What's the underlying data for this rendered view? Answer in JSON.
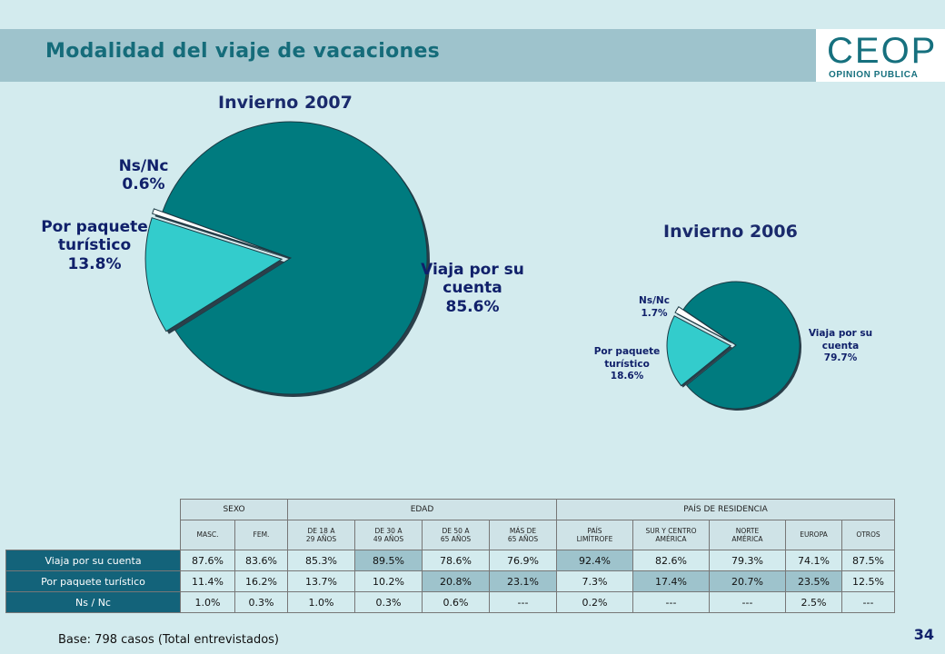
{
  "header": {
    "title": "Modalidad del viaje de vacaciones"
  },
  "logo": {
    "main": "CEOP",
    "sub": "OPINION PUBLICA"
  },
  "chart_data": [
    {
      "type": "pie",
      "title": "Invierno 2007",
      "slices": [
        {
          "name": "Viaja por su cuenta",
          "value": 85.6,
          "value_label": "85.6%",
          "color": "#007b7f"
        },
        {
          "name": "Ns/Nc",
          "value": 0.6,
          "value_label": "0.6%",
          "color": "#ffffff"
        },
        {
          "name": "Por paquete turístico",
          "value": 13.8,
          "value_label": "13.8%",
          "color": "#33cccc"
        }
      ]
    },
    {
      "type": "pie",
      "title": "Invierno 2006",
      "slices": [
        {
          "name": "Viaja por su cuenta",
          "value": 79.7,
          "value_label": "79.7%",
          "color": "#007b7f"
        },
        {
          "name": "Ns/Nc",
          "value": 1.7,
          "value_label": "1.7%",
          "color": "#ffffff"
        },
        {
          "name": "Por paquete turístico",
          "value": 18.6,
          "value_label": "18.6%",
          "color": "#33cccc"
        }
      ]
    }
  ],
  "labels2007": {
    "cuenta_1": "Viaja por su",
    "cuenta_2": "cuenta",
    "cuenta_3": "85.6%",
    "nsnc_1": "Ns/Nc",
    "nsnc_2": "0.6%",
    "paquete_1": "Por paquete",
    "paquete_2": "turístico",
    "paquete_3": "13.8%"
  },
  "labels2006": {
    "cuenta_1": "Viaja por su",
    "cuenta_2": "cuenta",
    "cuenta_3": "79.7%",
    "nsnc_1": "Ns/Nc",
    "nsnc_2": "1.7%",
    "paquete_1": "Por paquete",
    "paquete_2": "turístico",
    "paquete_3": "18.6%"
  },
  "table": {
    "groups": {
      "sexo": "SEXO",
      "edad": "EDAD",
      "pais": "PAÍS DE RESIDENCIA"
    },
    "subheaders": [
      [
        "MASC."
      ],
      [
        "FEM."
      ],
      [
        "DE 18 A",
        "29 AÑOS"
      ],
      [
        "DE 30 A",
        "49 AÑOS"
      ],
      [
        "DE 50 A",
        "65 AÑOS"
      ],
      [
        "MÁS DE",
        "65 AÑOS"
      ],
      [
        "PAÍS",
        "LIMÍTROFE"
      ],
      [
        "SUR Y CENTRO",
        "AMÉRICA"
      ],
      [
        "NORTE",
        "AMÉRICA"
      ],
      [
        "EUROPA"
      ],
      [
        "OTROS"
      ]
    ],
    "rows": [
      {
        "label": "Viaja por su cuenta",
        "values": [
          "87.6%",
          "83.6%",
          "85.3%",
          "89.5%",
          "78.6%",
          "76.9%",
          "92.4%",
          "82.6%",
          "79.3%",
          "74.1%",
          "87.5%"
        ],
        "highlight": [
          false,
          false,
          false,
          true,
          false,
          false,
          true,
          false,
          false,
          false,
          false
        ]
      },
      {
        "label": "Por paquete turístico",
        "values": [
          "11.4%",
          "16.2%",
          "13.7%",
          "10.2%",
          "20.8%",
          "23.1%",
          "7.3%",
          "17.4%",
          "20.7%",
          "23.5%",
          "12.5%"
        ],
        "highlight": [
          false,
          false,
          false,
          false,
          true,
          true,
          false,
          true,
          true,
          true,
          false
        ]
      },
      {
        "label": "Ns / Nc",
        "values": [
          "1.0%",
          "0.3%",
          "1.0%",
          "0.3%",
          "0.6%",
          "---",
          "0.2%",
          "---",
          "---",
          "2.5%",
          "---"
        ],
        "highlight": [
          false,
          false,
          false,
          false,
          false,
          false,
          false,
          false,
          false,
          false,
          false
        ]
      }
    ]
  },
  "footer": {
    "page_number": "34",
    "base_note": "Base: 798 casos (Total entrevistados)"
  }
}
